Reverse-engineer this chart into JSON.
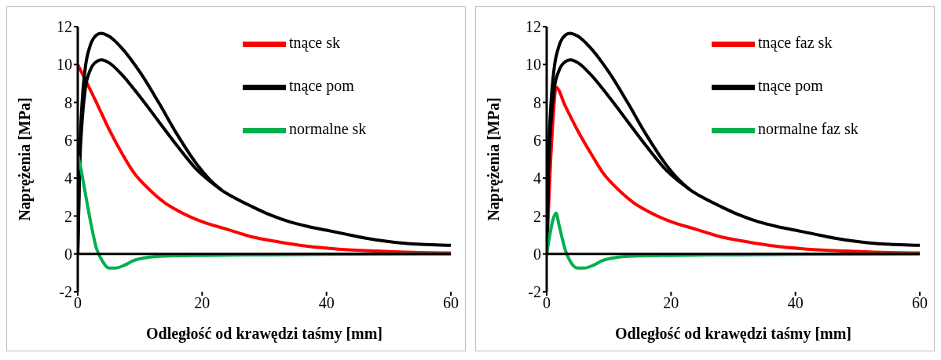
{
  "chart_data": [
    {
      "type": "line",
      "xlabel": "Odległość od krawędzi taśmy [mm]",
      "ylabel": "Naprężenia [MPa]",
      "xlim": [
        0,
        60
      ],
      "xticks": [
        0,
        20,
        40,
        60
      ],
      "ylim": [
        -2,
        12
      ],
      "yticks": [
        -2,
        0,
        2,
        4,
        6,
        8,
        10,
        12
      ],
      "legend": "top right",
      "marker": "none",
      "series": [
        {
          "name": "tnące sk",
          "color": "#ff0000",
          "x": [
            0,
            3,
            5,
            7.3,
            9,
            11.5,
            14,
            16,
            20,
            24,
            28,
            32,
            37,
            42,
            48,
            54,
            60
          ],
          "values": [
            10,
            8,
            6.6,
            5.2,
            4.3,
            3.4,
            2.7,
            2.3,
            1.7,
            1.3,
            0.9,
            0.65,
            0.4,
            0.25,
            0.15,
            0.08,
            0.05
          ]
        },
        {
          "name": "tnące pom",
          "color": "#000000",
          "x": [
            0,
            0.3,
            0.7,
            1.2,
            2,
            3,
            3.7,
            5,
            7,
            10,
            13,
            16,
            19,
            21,
            23,
            25,
            28,
            31,
            34,
            37,
            40,
            43,
            46,
            50,
            53,
            56,
            60
          ],
          "values": [
            0,
            5,
            8,
            9.8,
            11,
            11.55,
            11.65,
            11.5,
            10.9,
            9.6,
            8,
            6.3,
            4.8,
            4,
            3.4,
            3,
            2.5,
            2.05,
            1.7,
            1.45,
            1.25,
            1.05,
            0.85,
            0.65,
            0.55,
            0.5,
            0.45
          ]
        },
        {
          "color": "#000000",
          "x": [
            0,
            0.3,
            0.7,
            1.2,
            2,
            3,
            3.8,
            5,
            7,
            10,
            13,
            16,
            19,
            21,
            23
          ],
          "values": [
            0,
            4.5,
            7,
            8.7,
            9.7,
            10.15,
            10.25,
            10.1,
            9.5,
            8.3,
            7,
            5.7,
            4.5,
            3.9,
            3.4
          ]
        },
        {
          "name": "normalne sk",
          "color": "#00b050",
          "x": [
            0,
            0.5,
            1,
            2,
            3,
            4,
            5,
            6,
            7.5,
            9,
            11,
            14,
            20,
            30,
            40,
            60
          ],
          "values": [
            5.2,
            4.5,
            3.6,
            1.8,
            0.3,
            -0.4,
            -0.75,
            -0.75,
            -0.6,
            -0.35,
            -0.2,
            -0.12,
            -0.08,
            -0.05,
            -0.02,
            0
          ]
        }
      ]
    },
    {
      "type": "line",
      "xlabel": "Odległość od krawędzi taśmy [mm]",
      "ylabel": "Naprężenia [MPa]",
      "xlim": [
        0,
        60
      ],
      "xticks": [
        0,
        20,
        40,
        60
      ],
      "ylim": [
        -2,
        12
      ],
      "yticks": [
        -2,
        0,
        2,
        4,
        6,
        8,
        10,
        12
      ],
      "legend": "top right",
      "marker": "none",
      "series": [
        {
          "name": "tnące faz sk",
          "color": "#ff0000",
          "x": [
            0,
            0.5,
            1,
            1.5,
            3,
            5,
            7.3,
            9,
            11.5,
            14,
            16,
            20,
            24,
            28,
            32,
            37,
            42,
            48,
            54,
            60
          ],
          "values": [
            0,
            4,
            7,
            8.8,
            7.8,
            6.5,
            5.2,
            4.3,
            3.4,
            2.7,
            2.3,
            1.7,
            1.3,
            0.9,
            0.65,
            0.4,
            0.25,
            0.15,
            0.08,
            0.05
          ]
        },
        {
          "name": "tnące pom",
          "color": "#000000",
          "x": [
            0,
            0.3,
            0.7,
            1.2,
            2,
            3,
            3.7,
            5,
            7,
            10,
            13,
            16,
            19,
            21,
            23,
            25,
            28,
            31,
            34,
            37,
            40,
            43,
            46,
            50,
            53,
            56,
            60
          ],
          "values": [
            0,
            5,
            8,
            9.8,
            11,
            11.55,
            11.65,
            11.5,
            10.9,
            9.6,
            8,
            6.3,
            4.8,
            4,
            3.4,
            3,
            2.5,
            2.05,
            1.7,
            1.45,
            1.25,
            1.05,
            0.85,
            0.65,
            0.55,
            0.5,
            0.45
          ]
        },
        {
          "color": "#000000",
          "x": [
            0,
            0.3,
            0.7,
            1.2,
            2,
            3,
            3.8,
            5,
            7,
            10,
            13,
            16,
            19,
            21,
            23
          ],
          "values": [
            0,
            4.5,
            7,
            8.7,
            9.7,
            10.15,
            10.25,
            10.1,
            9.5,
            8.3,
            7,
            5.7,
            4.5,
            3.9,
            3.4
          ]
        },
        {
          "name": "normalne faz sk",
          "color": "#00b050",
          "x": [
            0,
            0.5,
            1,
            1.5,
            2,
            3,
            4,
            5,
            6,
            7.5,
            9,
            11,
            14,
            20,
            30,
            40,
            60
          ],
          "values": [
            0,
            1,
            1.8,
            2.15,
            1.5,
            0.2,
            -0.5,
            -0.75,
            -0.75,
            -0.6,
            -0.35,
            -0.2,
            -0.12,
            -0.08,
            -0.05,
            -0.02,
            0
          ]
        }
      ]
    }
  ]
}
